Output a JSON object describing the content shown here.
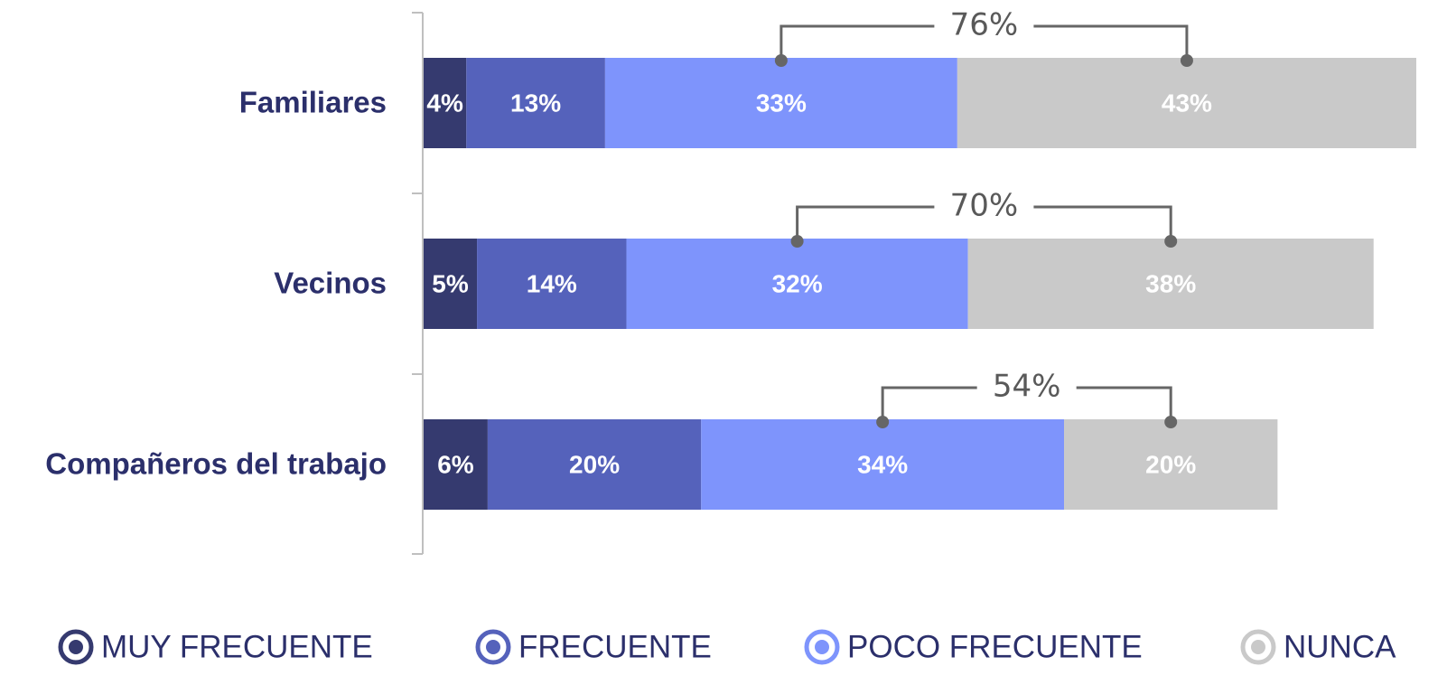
{
  "chart_data": {
    "type": "stacked-bar-horizontal",
    "categories": [
      "Familiares",
      "Vecinos",
      "Compañeros del trabajo"
    ],
    "series": [
      {
        "name": "MUY FRECUENTE",
        "color": "#353a6f",
        "values": [
          4,
          5,
          6
        ],
        "value_labels": [
          "4%",
          "5%",
          "6%"
        ]
      },
      {
        "name": "FRECUENTE",
        "color": "#5562bb",
        "values": [
          13,
          14,
          20
        ],
        "value_labels": [
          "13%",
          "14%",
          "20%"
        ]
      },
      {
        "name": "POCO FRECUENTE",
        "color": "#7e94fc",
        "values": [
          33,
          32,
          34
        ],
        "value_labels": [
          "33%",
          "32%",
          "34%"
        ]
      },
      {
        "name": "NUNCA",
        "color": "#c9c9c9",
        "values": [
          43,
          38,
          20
        ],
        "value_labels": [
          "43%",
          "38%",
          "20%"
        ]
      }
    ],
    "totals": {
      "values": [
        76,
        70,
        54
      ],
      "value_labels": [
        "76%",
        "70%",
        "54%"
      ]
    },
    "xlim": [
      0,
      93
    ],
    "legend": "bottom"
  }
}
